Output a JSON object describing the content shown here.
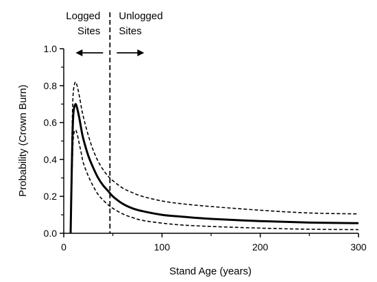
{
  "chart_data": {
    "type": "line",
    "xlabel": "Stand Age  (years)",
    "ylabel": "Probability  (Crown Burn)",
    "xlim": [
      0,
      300
    ],
    "ylim": [
      0,
      1.0
    ],
    "x_ticks": [
      0,
      100,
      200,
      300
    ],
    "y_ticks": [
      0.0,
      0.2,
      0.4,
      0.6,
      0.8,
      1.0
    ],
    "x_tick_labels": [
      "0",
      "100",
      "200",
      "300"
    ],
    "y_tick_labels": [
      "0.0",
      "0.2",
      "0.4",
      "0.6",
      "0.8",
      "1.0"
    ],
    "grid": false,
    "series": [
      {
        "style": "solid",
        "x": [
          7,
          8,
          9,
          10,
          12,
          14,
          16,
          18,
          20,
          25,
          30,
          35,
          40,
          45,
          50,
          60,
          70,
          80,
          100,
          120,
          150,
          200,
          250,
          300
        ],
        "y": [
          0.0,
          0.3,
          0.55,
          0.66,
          0.7,
          0.67,
          0.62,
          0.56,
          0.51,
          0.42,
          0.355,
          0.3,
          0.26,
          0.23,
          0.2,
          0.16,
          0.135,
          0.12,
          0.1,
          0.09,
          0.078,
          0.066,
          0.058,
          0.055
        ]
      },
      {
        "style": "dashed",
        "x": [
          7,
          8,
          9,
          10,
          12,
          14,
          16,
          18,
          20,
          25,
          30,
          35,
          40,
          45,
          50,
          60,
          70,
          80,
          100,
          120,
          150,
          200,
          250,
          300
        ],
        "y": [
          0.0,
          0.4,
          0.68,
          0.78,
          0.82,
          0.79,
          0.74,
          0.68,
          0.63,
          0.53,
          0.45,
          0.39,
          0.345,
          0.31,
          0.285,
          0.245,
          0.22,
          0.2,
          0.175,
          0.16,
          0.145,
          0.125,
          0.11,
          0.105
        ]
      },
      {
        "style": "dashed",
        "x": [
          7,
          8,
          9,
          10,
          12,
          14,
          16,
          18,
          20,
          25,
          30,
          35,
          40,
          45,
          50,
          60,
          70,
          80,
          100,
          120,
          150,
          200,
          250,
          300
        ],
        "y": [
          0.0,
          0.22,
          0.43,
          0.53,
          0.56,
          0.53,
          0.48,
          0.43,
          0.38,
          0.31,
          0.255,
          0.21,
          0.18,
          0.155,
          0.135,
          0.105,
          0.085,
          0.07,
          0.055,
          0.045,
          0.037,
          0.028,
          0.022,
          0.02
        ]
      }
    ],
    "annotations": [
      {
        "type": "vline",
        "x": 47,
        "style": "dashed"
      },
      {
        "type": "text",
        "lines": [
          "Logged",
          "Sites"
        ],
        "arrow": "left"
      },
      {
        "type": "text",
        "lines": [
          "Unlogged",
          "Sites"
        ],
        "arrow": "right"
      }
    ]
  }
}
